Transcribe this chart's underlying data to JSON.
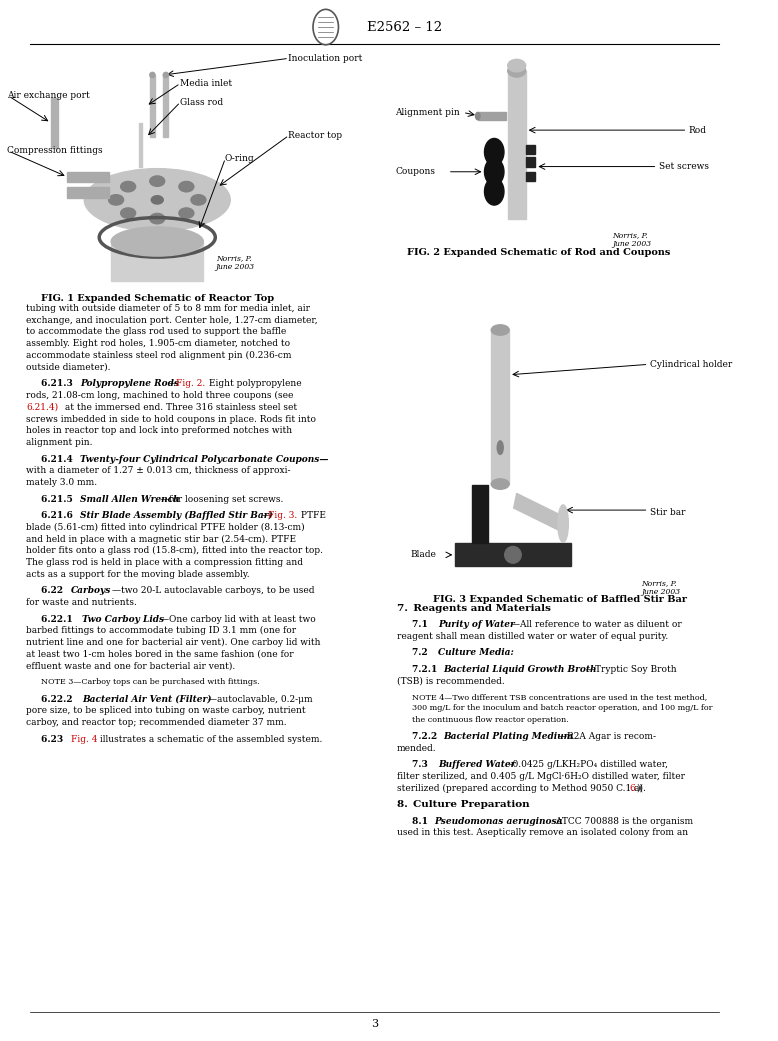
{
  "page_width": 7.78,
  "page_height": 10.41,
  "dpi": 100,
  "background_color": "#ffffff",
  "header_text": "E2562 – 12",
  "page_number": "3",
  "fig1_caption": "FIG. 1 Expanded Schematic of Reactor Top",
  "fig2_caption": "FIG. 2 Expanded Schematic of Rod and Coupons",
  "fig3_caption": "FIG. 3 Expanded Schematic of Baffled Stir Bar"
}
